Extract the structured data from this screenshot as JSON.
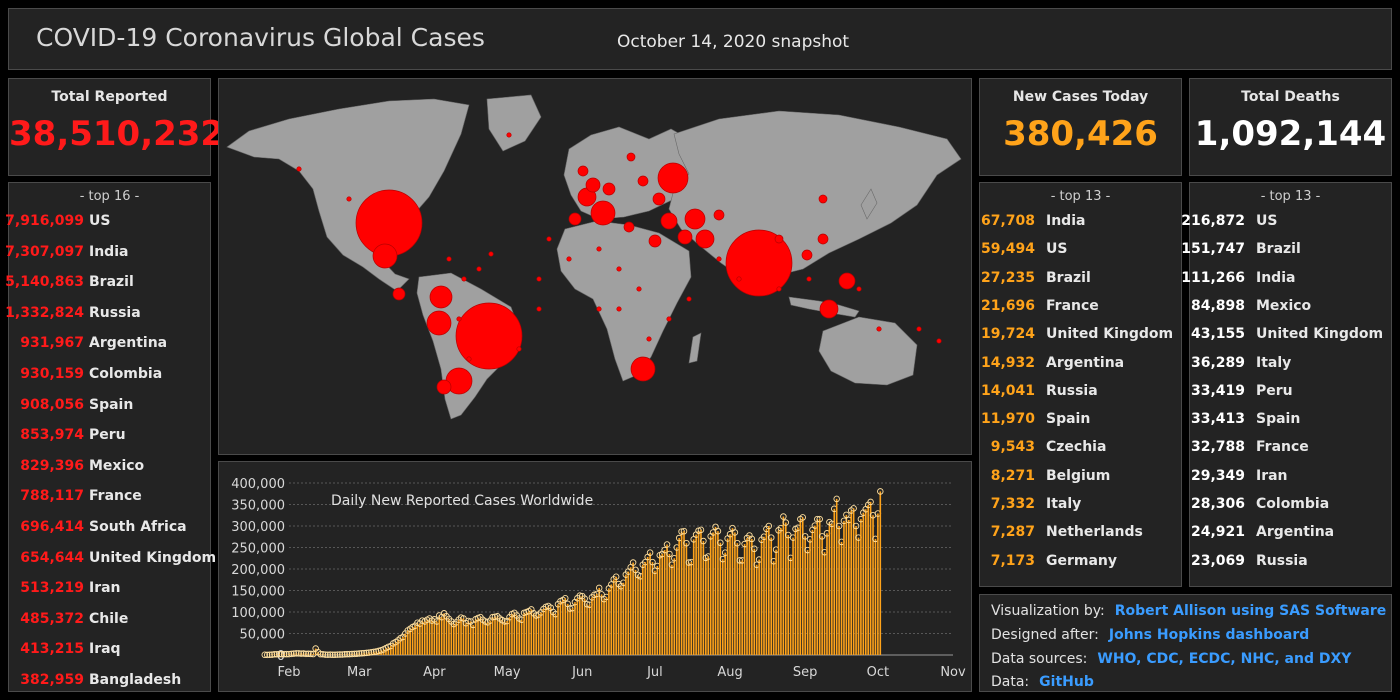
{
  "header": {
    "title": "COVID-19 Coronavirus Global Cases",
    "snapshot": "October 14, 2020 snapshot"
  },
  "colors": {
    "cases": "#ff1a1a",
    "new": "#ffa31a",
    "deaths": "#ffffff",
    "link": "#3a9cff"
  },
  "total_reported": {
    "title": "Total Reported",
    "value": "38,510,232",
    "caption": "- top 16 -",
    "rows": [
      {
        "num": "7,916,099",
        "label": "US"
      },
      {
        "num": "7,307,097",
        "label": "India"
      },
      {
        "num": "5,140,863",
        "label": "Brazil"
      },
      {
        "num": "1,332,824",
        "label": "Russia"
      },
      {
        "num": "931,967",
        "label": "Argentina"
      },
      {
        "num": "930,159",
        "label": "Colombia"
      },
      {
        "num": "908,056",
        "label": "Spain"
      },
      {
        "num": "853,974",
        "label": "Peru"
      },
      {
        "num": "829,396",
        "label": "Mexico"
      },
      {
        "num": "788,117",
        "label": "France"
      },
      {
        "num": "696,414",
        "label": "South Africa"
      },
      {
        "num": "654,644",
        "label": "United Kingdom"
      },
      {
        "num": "513,219",
        "label": "Iran"
      },
      {
        "num": "485,372",
        "label": "Chile"
      },
      {
        "num": "413,215",
        "label": "Iraq"
      },
      {
        "num": "382,959",
        "label": "Bangladesh"
      }
    ]
  },
  "new_cases": {
    "title": "New Cases Today",
    "value": "380,426",
    "caption": "- top 13 -",
    "rows": [
      {
        "num": "67,708",
        "label": "India"
      },
      {
        "num": "59,494",
        "label": "US"
      },
      {
        "num": "27,235",
        "label": "Brazil"
      },
      {
        "num": "21,696",
        "label": "France"
      },
      {
        "num": "19,724",
        "label": "United Kingdom"
      },
      {
        "num": "14,932",
        "label": "Argentina"
      },
      {
        "num": "14,041",
        "label": "Russia"
      },
      {
        "num": "11,970",
        "label": "Spain"
      },
      {
        "num": "9,543",
        "label": "Czechia"
      },
      {
        "num": "8,271",
        "label": "Belgium"
      },
      {
        "num": "7,332",
        "label": "Italy"
      },
      {
        "num": "7,287",
        "label": "Netherlands"
      },
      {
        "num": "7,173",
        "label": "Germany"
      }
    ]
  },
  "total_deaths": {
    "title": "Total Deaths",
    "value": "1,092,144",
    "caption": "- top 13 -",
    "rows": [
      {
        "num": "216,872",
        "label": "US"
      },
      {
        "num": "151,747",
        "label": "Brazil"
      },
      {
        "num": "111,266",
        "label": "India"
      },
      {
        "num": "84,898",
        "label": "Mexico"
      },
      {
        "num": "43,155",
        "label": "United Kingdom"
      },
      {
        "num": "36,289",
        "label": "Italy"
      },
      {
        "num": "33,419",
        "label": "Peru"
      },
      {
        "num": "33,413",
        "label": "Spain"
      },
      {
        "num": "32,788",
        "label": "France"
      },
      {
        "num": "29,349",
        "label": "Iran"
      },
      {
        "num": "28,306",
        "label": "Colombia"
      },
      {
        "num": "24,921",
        "label": "Argentina"
      },
      {
        "num": "23,069",
        "label": "Russia"
      }
    ]
  },
  "credits": [
    {
      "label": "Visualization by:",
      "link": "Robert Allison using SAS Software"
    },
    {
      "label": "Designed after:",
      "link": "Johns Hopkins dashboard"
    },
    {
      "label": "Data sources:",
      "link": "WHO, CDC, ECDC, NHC, and DXY"
    },
    {
      "label": "Data:",
      "link": "GitHub"
    }
  ],
  "chart_data": {
    "type": "bar",
    "title": "Daily New Reported Cases Worldwide",
    "xlabel": "",
    "ylabel": "",
    "ylim": [
      0,
      400000
    ],
    "yticks": [
      "0",
      "50,000",
      "100,000",
      "150,000",
      "200,000",
      "250,000",
      "300,000",
      "350,000",
      "400,000"
    ],
    "xticks": [
      "Feb",
      "Mar",
      "Apr",
      "May",
      "Jun",
      "Jul",
      "Aug",
      "Sep",
      "Oct",
      "Nov"
    ],
    "x_start": "2020-01-22",
    "series": [
      {
        "color": "#ffa31a",
        "values": [
          500,
          300,
          700,
          800,
          1700,
          1700,
          2100,
          1900,
          2000,
          2000,
          2100,
          2700,
          3200,
          3900,
          3700,
          3200,
          3400,
          2700,
          3000,
          2500,
          2200,
          15000,
          6500,
          2000,
          1800,
          1000,
          600,
          900,
          500,
          700,
          900,
          1100,
          1300,
          1600,
          1900,
          2100,
          2300,
          2600,
          3000,
          3500,
          4000,
          4500,
          5000,
          5600,
          6500,
          7200,
          8000,
          9500,
          11000,
          13000,
          16000,
          19000,
          21000,
          27000,
          30000,
          34000,
          39000,
          42000,
          50000,
          57000,
          61000,
          65000,
          68000,
          75000,
          73000,
          80000,
          78000,
          82000,
          85000,
          80000,
          83000,
          78000,
          92000,
          88000,
          97000,
          90000,
          84000,
          78000,
          72000,
          76000,
          82000,
          87000,
          85000,
          74000,
          79000,
          78000,
          70000,
          83000,
          86000,
          88000,
          82000,
          78000,
          76000,
          80000,
          88000,
          89000,
          90000,
          85000,
          81000,
          78000,
          79000,
          88000,
          95000,
          98000,
          92000,
          85000,
          82000,
          98000,
          100000,
          102000,
          106000,
          97000,
          92000,
          94000,
          99000,
          107000,
          112000,
          114000,
          110000,
          100000,
          95000,
          118000,
          125000,
          128000,
          132000,
          119000,
          108000,
          109000,
          123000,
          132000,
          138000,
          137000,
          131000,
          118000,
          117000,
          134000,
          140000,
          142000,
          156000,
          141000,
          130000,
          135000,
          155000,
          164000,
          176000,
          182000,
          165000,
          160000,
          168000,
          187000,
          194000,
          204000,
          215000,
          198000,
          186000,
          183000,
          210000,
          216000,
          228000,
          238000,
          216000,
          196000,
          207000,
          232000,
          235000,
          244000,
          257000,
          235000,
          210000,
          225000,
          250000,
          272000,
          287000,
          288000,
          260000,
          215000,
          216000,
          269000,
          280000,
          289000,
          291000,
          265000,
          226000,
          229000,
          276000,
          285000,
          298000,
          288000,
          261000,
          223000,
          238000,
          271000,
          281000,
          295000,
          285000,
          260000,
          220000,
          220000,
          258000,
          272000,
          278000,
          270000,
          247000,
          210000,
          222000,
          268000,
          275000,
          293000,
          300000,
          273000,
          218000,
          245000,
          290000,
          295000,
          322000,
          308000,
          279000,
          226000,
          273000,
          293000,
          296000,
          316000,
          320000,
          276000,
          244000,
          269000,
          291000,
          301000,
          316000,
          316000,
          276000,
          239000,
          283000,
          309000,
          305000,
          340000,
          363000,
          300000,
          263000,
          312000,
          326000,
          314000,
          336000,
          341000,
          300000,
          273000,
          316000,
          331000,
          339000,
          349000,
          356000,
          325000,
          270000,
          329000,
          380426
        ]
      }
    ]
  }
}
